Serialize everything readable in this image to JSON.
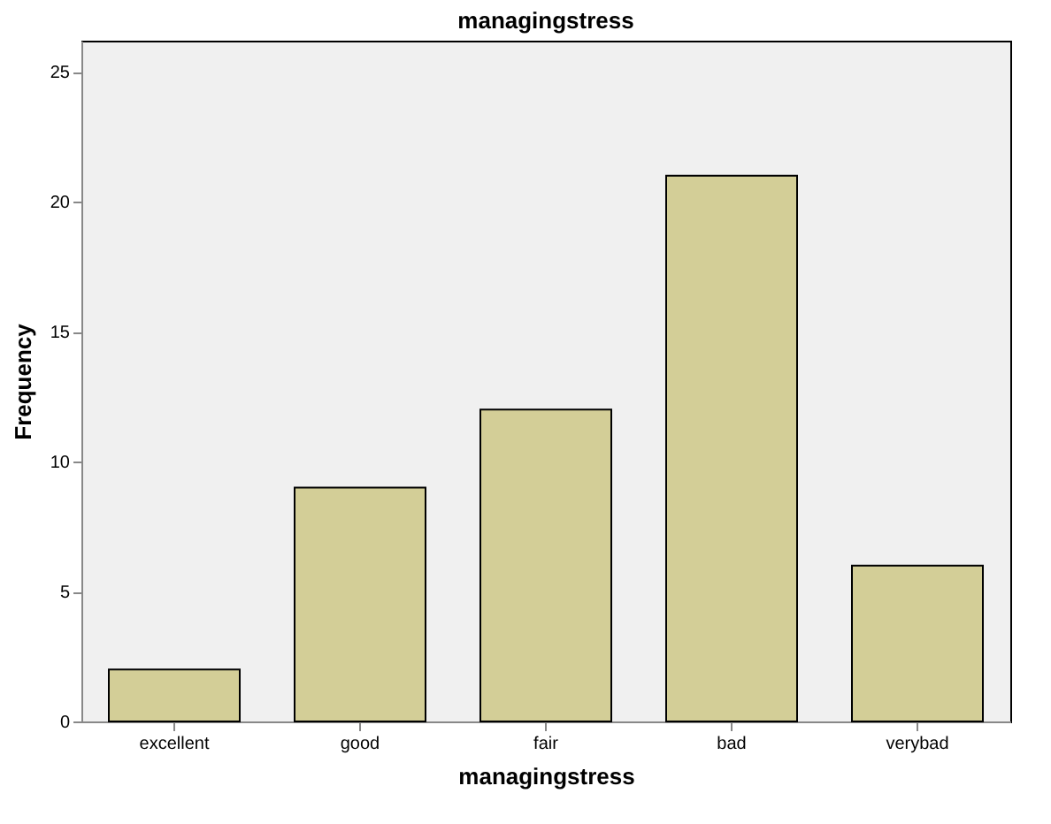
{
  "chart_data": {
    "type": "bar",
    "title": "managingstress",
    "xlabel": "managingstress",
    "ylabel": "Frequency",
    "categories": [
      "excellent",
      "good",
      "fair",
      "bad",
      "verybad"
    ],
    "values": [
      2,
      9,
      12,
      21,
      6
    ],
    "color": "#d3ce97",
    "ylim": [
      0,
      26.2
    ],
    "yticks": [
      0,
      5,
      10,
      15,
      20,
      25
    ],
    "grid": false
  }
}
